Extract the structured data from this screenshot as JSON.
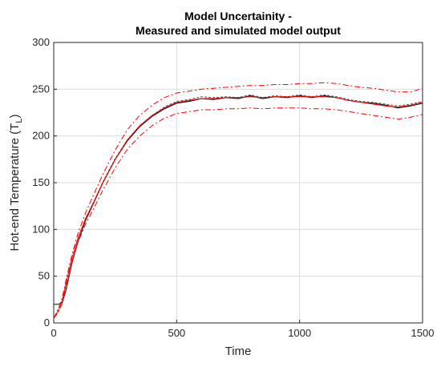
{
  "chart_data": {
    "type": "line",
    "title": [
      "Model Uncertainity -",
      "Measured and simulated model output"
    ],
    "xlabel": "Time",
    "ylabel_main": "Hot-end Temperature (T",
    "ylabel_sub": "L",
    "ylabel_end": ")",
    "xlim": [
      0,
      1500
    ],
    "ylim": [
      0,
      300
    ],
    "xticks": [
      0,
      500,
      1000,
      1500
    ],
    "yticks": [
      0,
      50,
      100,
      150,
      200,
      250,
      300
    ],
    "grid": true,
    "colors": {
      "measured": "#1a1a1a",
      "band": "#ff0000",
      "grid": "#dcdcdc"
    },
    "series": [
      {
        "style": "solid-black",
        "x": [
          0,
          20,
          35,
          50,
          75,
          100,
          130,
          160,
          200,
          250,
          300,
          350,
          400,
          450,
          500,
          550,
          600,
          650,
          700,
          750,
          800,
          850,
          900,
          950,
          1000,
          1050,
          1100,
          1150,
          1200,
          1250,
          1300,
          1350,
          1400,
          1450,
          1500
        ],
        "y": [
          20,
          20,
          22,
          35,
          65,
          88,
          110,
          127,
          150,
          175,
          195,
          210,
          221,
          229,
          235,
          237,
          240,
          239,
          241,
          240,
          243,
          240,
          242,
          241,
          243,
          241,
          243,
          241,
          238,
          236,
          235,
          233,
          230,
          232,
          235
        ]
      },
      {
        "style": "dashed-black",
        "x": [
          0,
          20,
          35,
          50,
          75,
          100,
          130,
          160,
          200,
          250,
          300,
          350,
          400,
          450,
          500,
          550,
          600,
          650,
          700,
          750,
          800,
          850,
          900,
          950,
          1000,
          1050,
          1100,
          1150,
          1200,
          1250,
          1300,
          1350,
          1400,
          1450,
          1500
        ],
        "y": [
          20,
          20,
          23,
          36,
          66,
          89,
          111,
          128,
          151,
          176,
          196,
          211,
          222,
          231,
          237,
          239,
          242,
          241,
          242,
          241,
          244,
          241,
          243,
          242,
          244,
          242,
          244,
          242,
          239,
          237,
          236,
          234,
          232,
          234,
          237
        ]
      },
      {
        "style": "solid-red",
        "x": [
          0,
          20,
          35,
          50,
          75,
          100,
          130,
          160,
          200,
          250,
          300,
          350,
          400,
          450,
          500,
          550,
          600,
          650,
          700,
          750,
          800,
          850,
          900,
          950,
          1000,
          1050,
          1100,
          1150,
          1200,
          1250,
          1300,
          1350,
          1400,
          1450,
          1500
        ],
        "y": [
          5,
          14,
          24,
          42,
          70,
          92,
          112,
          128,
          150,
          175,
          196,
          211,
          222,
          230,
          236,
          238,
          240,
          240,
          241,
          241,
          242,
          241,
          242,
          242,
          242,
          242,
          242,
          241,
          238,
          236,
          234,
          232,
          231,
          233,
          236
        ]
      },
      {
        "style": "dashdot-red",
        "x": [
          0,
          20,
          35,
          50,
          75,
          100,
          130,
          160,
          200,
          250,
          300,
          350,
          400,
          450,
          500,
          550,
          600,
          650,
          700,
          750,
          800,
          850,
          900,
          950,
          1000,
          1050,
          1100,
          1150,
          1200,
          1250,
          1300,
          1350,
          1400,
          1450,
          1500
        ],
        "y": [
          5,
          16,
          27,
          46,
          74,
          97,
          118,
          136,
          159,
          185,
          207,
          222,
          233,
          241,
          246,
          248,
          250,
          251,
          252,
          253,
          254,
          254,
          255,
          255,
          256,
          256,
          257,
          256,
          254,
          252,
          251,
          249,
          247,
          247,
          251
        ]
      },
      {
        "style": "dashdot-red",
        "x": [
          0,
          20,
          35,
          50,
          75,
          100,
          130,
          160,
          200,
          250,
          300,
          350,
          400,
          450,
          500,
          550,
          600,
          650,
          700,
          750,
          800,
          850,
          900,
          950,
          1000,
          1050,
          1100,
          1150,
          1200,
          1250,
          1300,
          1350,
          1400,
          1450,
          1500
        ],
        "y": [
          5,
          12,
          21,
          38,
          66,
          87,
          106,
          121,
          142,
          166,
          186,
          200,
          211,
          219,
          224,
          226,
          228,
          228,
          229,
          229,
          230,
          229,
          230,
          230,
          230,
          229,
          229,
          228,
          226,
          224,
          222,
          220,
          218,
          220,
          223
        ]
      }
    ]
  }
}
